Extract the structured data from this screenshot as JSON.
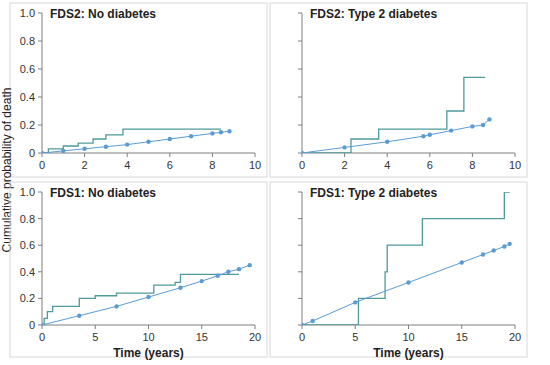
{
  "chart_data": [
    {
      "type": "line",
      "title": "FDS2: No diabetes",
      "ylabel": "Cumulative probability of death",
      "xlim": [
        0,
        10
      ],
      "xticks": [
        0,
        2,
        4,
        6,
        8,
        10
      ],
      "ylim": [
        0,
        1
      ],
      "yticks": [
        0,
        0.2,
        0.4,
        0.6,
        0.8,
        {
          "value": 1,
          "label": "1.0"
        }
      ],
      "series": [
        {
          "color": "#4f9a9a",
          "line_style": "step",
          "x": [
            0,
            0.3,
            1.0,
            1.7,
            2.4,
            3.0,
            3.8,
            8.4
          ],
          "values": [
            0,
            0.03,
            0.05,
            0.07,
            0.1,
            0.13,
            0.17,
            0.17
          ]
        },
        {
          "color": "#5b9bd5",
          "marker": "circle",
          "x": [
            0,
            1,
            2,
            3,
            4,
            5,
            6,
            7,
            8,
            8.4,
            8.8
          ],
          "values": [
            0,
            0.015,
            0.03,
            0.045,
            0.06,
            0.08,
            0.1,
            0.12,
            0.14,
            0.148,
            0.155
          ]
        }
      ]
    },
    {
      "type": "line",
      "title": "FDS2: Type 2 diabetes",
      "tick_labels": "x",
      "xlim": [
        0,
        10
      ],
      "xticks": [
        0,
        2,
        4,
        6,
        8,
        10
      ],
      "ylim": [
        0,
        1
      ],
      "yticks": [
        0,
        0.2,
        0.4,
        0.6,
        0.8,
        {
          "value": 1,
          "label": "1.0"
        }
      ],
      "series": [
        {
          "color": "#4f9a9a",
          "line_style": "step",
          "x": [
            0,
            2.3,
            3.6,
            6.8,
            7.6,
            8.6
          ],
          "values": [
            0,
            0.1,
            0.17,
            0.3,
            0.54,
            0.54
          ]
        },
        {
          "color": "#5b9bd5",
          "marker": "circle",
          "x": [
            0,
            2,
            4,
            5.7,
            6,
            7,
            8,
            8.5,
            8.8
          ],
          "values": [
            0,
            0.04,
            0.08,
            0.12,
            0.13,
            0.16,
            0.19,
            0.2,
            0.24
          ]
        }
      ]
    },
    {
      "type": "line",
      "title": "FDS1: No diabetes",
      "xlabel": "Time (years)",
      "xlim": [
        0,
        20
      ],
      "xticks": [
        0,
        5,
        10,
        15,
        20
      ],
      "ylim": [
        0,
        1
      ],
      "yticks": [
        0,
        0.2,
        0.4,
        0.6,
        0.8,
        {
          "value": 1,
          "label": "1.0"
        }
      ],
      "series": [
        {
          "color": "#4f9a9a",
          "line_style": "step",
          "x": [
            0,
            0.2,
            0.5,
            1.0,
            3.5,
            5.0,
            7.0,
            10.5,
            12.5,
            13.0,
            18.5
          ],
          "values": [
            0,
            0.05,
            0.1,
            0.14,
            0.2,
            0.22,
            0.24,
            0.3,
            0.32,
            0.38,
            0.38
          ]
        },
        {
          "color": "#5b9bd5",
          "marker": "circle",
          "x": [
            0,
            3.5,
            7,
            10,
            13,
            15,
            16.5,
            17.5,
            18.5,
            19.5
          ],
          "values": [
            0,
            0.07,
            0.14,
            0.21,
            0.28,
            0.33,
            0.37,
            0.4,
            0.42,
            0.45
          ]
        }
      ]
    },
    {
      "type": "line",
      "title": "FDS1: Type 2 diabetes",
      "xlabel": "Time (years)",
      "tick_labels": "x",
      "xlim": [
        0,
        20
      ],
      "xticks": [
        0,
        5,
        10,
        15,
        20
      ],
      "ylim": [
        0,
        1
      ],
      "yticks": [
        0,
        0.2,
        0.4,
        0.6,
        0.8,
        {
          "value": 1,
          "label": "1.0"
        }
      ],
      "series": [
        {
          "color": "#4f9a9a",
          "line_style": "step",
          "x": [
            0,
            5.3,
            7.8,
            8.0,
            11.3,
            19.0,
            19.5
          ],
          "values": [
            0,
            0.2,
            0.4,
            0.6,
            0.8,
            1,
            1
          ]
        },
        {
          "color": "#5b9bd5",
          "marker": "circle",
          "x": [
            0,
            1,
            5,
            10,
            15,
            17,
            18,
            19,
            19.5
          ],
          "values": [
            0,
            0.03,
            0.17,
            0.32,
            0.47,
            0.53,
            0.56,
            0.59,
            0.61
          ]
        }
      ]
    }
  ]
}
